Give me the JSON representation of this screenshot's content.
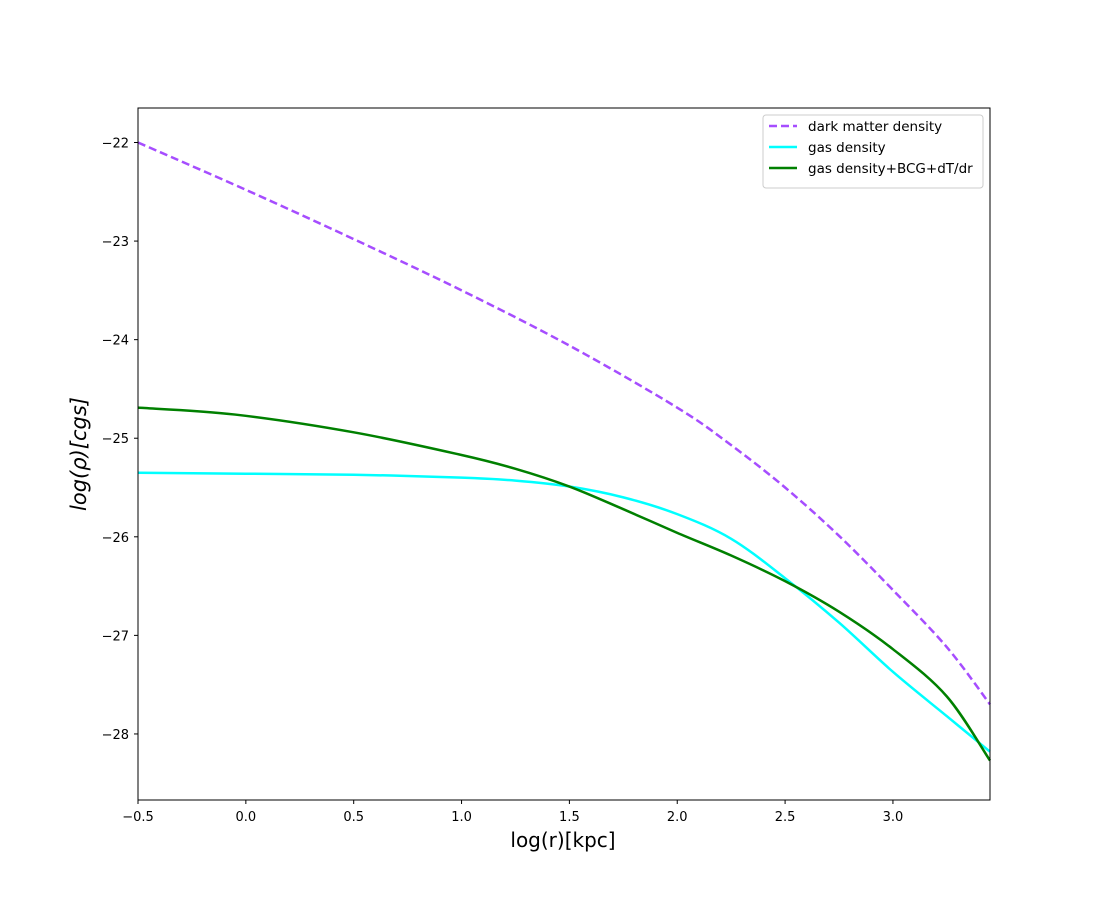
{
  "chart_data": {
    "type": "line",
    "xlabel": "log(r)[kpc]",
    "ylabel": "log(ρ)[cgs]",
    "xlim": [
      -0.5,
      3.45
    ],
    "ylim": [
      -28.67,
      -21.65
    ],
    "xticks": [
      -0.5,
      0.0,
      0.5,
      1.0,
      1.5,
      2.0,
      2.5,
      3.0
    ],
    "xtick_labels": [
      "−0.5",
      "0.0",
      "0.5",
      "1.0",
      "1.5",
      "2.0",
      "2.5",
      "3.0"
    ],
    "yticks": [
      -22,
      -23,
      -24,
      -25,
      -26,
      -27,
      -28
    ],
    "ytick_labels": [
      "−22",
      "−23",
      "−24",
      "−25",
      "−26",
      "−27",
      "−28"
    ],
    "grid": false,
    "legend_position": "top-right",
    "series": [
      {
        "name": "dark matter density",
        "color": "#a64dff",
        "style": "dashed",
        "x": [
          -0.5,
          0.0,
          0.5,
          1.0,
          1.5,
          2.0,
          2.25,
          2.5,
          2.75,
          3.0,
          3.25,
          3.45
        ],
        "y": [
          -22.0,
          -22.48,
          -22.98,
          -23.5,
          -24.06,
          -24.69,
          -25.07,
          -25.5,
          -25.99,
          -26.54,
          -27.12,
          -27.7
        ]
      },
      {
        "name": "gas density",
        "color": "#00ffff",
        "style": "solid",
        "x": [
          -0.5,
          0.0,
          0.5,
          1.0,
          1.25,
          1.5,
          1.75,
          2.0,
          2.25,
          2.5,
          2.75,
          3.0,
          3.25,
          3.45
        ],
        "y": [
          -25.35,
          -25.36,
          -25.37,
          -25.4,
          -25.43,
          -25.49,
          -25.6,
          -25.77,
          -26.02,
          -26.42,
          -26.87,
          -27.37,
          -27.82,
          -28.18
        ]
      },
      {
        "name": "gas density+BCG+dT/dr",
        "color": "#008000",
        "style": "solid",
        "x": [
          -0.5,
          -0.05,
          0.5,
          1.0,
          1.25,
          1.5,
          1.75,
          2.0,
          2.25,
          2.5,
          2.75,
          3.0,
          3.25,
          3.45
        ],
        "y": [
          -24.69,
          -24.76,
          -24.94,
          -25.17,
          -25.31,
          -25.49,
          -25.72,
          -25.96,
          -26.19,
          -26.45,
          -26.76,
          -27.14,
          -27.62,
          -28.27
        ]
      }
    ]
  }
}
